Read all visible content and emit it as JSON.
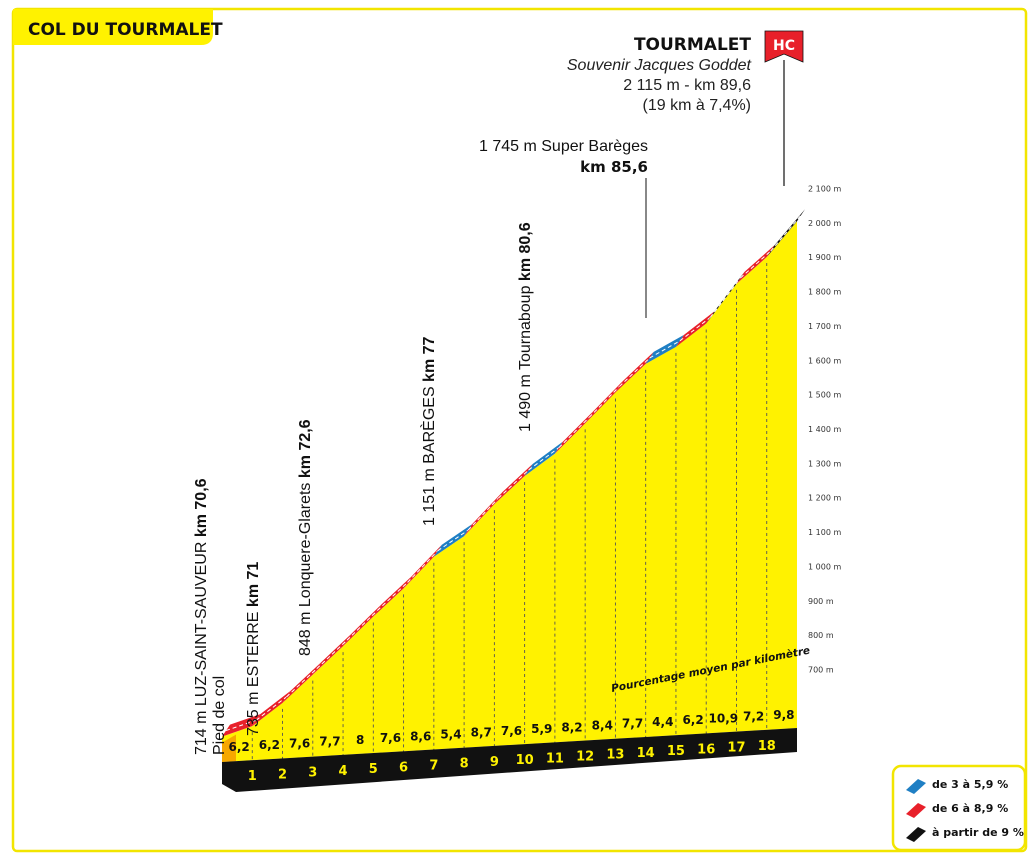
{
  "header": {
    "title": "COL DU TOURMALET"
  },
  "summit": {
    "name": "TOURMALET",
    "subtitle": "Souvenir Jacques Goddet",
    "altitude_line": "2 115 m - km 89,6",
    "climb_line": "(19 km à 7,4%)",
    "category": "HC"
  },
  "waypoints": [
    {
      "altitude_label": "714 m LUZ-SAINT-SAUVEUR",
      "km_label": "km 70,6",
      "extra": "Pied de col"
    },
    {
      "altitude_label": "735 m ESTERRE",
      "km_label": "km 71"
    },
    {
      "altitude_label": "848 m Lonquere-Glarets",
      "km_label": "km 72,6"
    },
    {
      "altitude_label": "1 151 m BARÈGES",
      "km_label": "km 77"
    },
    {
      "altitude_label": "1 490 m Tournaboup",
      "km_label": "km 80,6"
    },
    {
      "altitude_label": "1 745 m Super Barèges",
      "km_label": "km 85,6"
    }
  ],
  "per_km_note": "Pourcentage moyen par kilomètre",
  "legend": {
    "items": [
      {
        "label": "de 3 à 5,9 %",
        "color": "#1f7fc4"
      },
      {
        "label": "de 6 à 8,9 %",
        "color": "#e8202a"
      },
      {
        "label": "à partir de 9 %",
        "color": "#111111"
      }
    ]
  },
  "colors": {
    "profile_fill": "#fff200",
    "border": "#f2e500",
    "base": "#111111"
  },
  "chart_data": {
    "type": "area",
    "title": "COL DU TOURMALET",
    "xlabel": "",
    "ylabel": "",
    "y_ticks": [
      "700 m",
      "800 m",
      "900 m",
      "1 000 m",
      "1 100 m",
      "1 200 m",
      "1 300 m",
      "1 400 m",
      "1 500 m",
      "1 600 m",
      "1 700 m",
      "1 800 m",
      "1 900 m",
      "2 000 m",
      "2 100 m"
    ],
    "y_tick_values": [
      700,
      800,
      900,
      1000,
      1100,
      1200,
      1300,
      1400,
      1500,
      1600,
      1700,
      1800,
      1900,
      2000,
      2100
    ],
    "ylim": [
      700,
      2100
    ],
    "km_labels": [
      "1",
      "2",
      "3",
      "4",
      "5",
      "6",
      "7",
      "8",
      "9",
      "10",
      "11",
      "12",
      "13",
      "14",
      "15",
      "16",
      "17",
      "18"
    ],
    "gradients": [
      6.2,
      6.2,
      7.6,
      7.7,
      8,
      7.6,
      8.6,
      5.4,
      8.7,
      7.6,
      5.9,
      8.2,
      8.4,
      7.7,
      4.4,
      6.2,
      10.9,
      7.2,
      9.8
    ],
    "gradient_labels": [
      "6,2",
      "6,2",
      "7,6",
      "7,7",
      "8",
      "7,6",
      "8,6",
      "5,4",
      "8,7",
      "7,6",
      "5,9",
      "8,2",
      "8,4",
      "7,7",
      "4,4",
      "6,2",
      "10,9",
      "7,2",
      "9,8"
    ],
    "start_altitude": 714,
    "summit_altitude": 2115
  }
}
